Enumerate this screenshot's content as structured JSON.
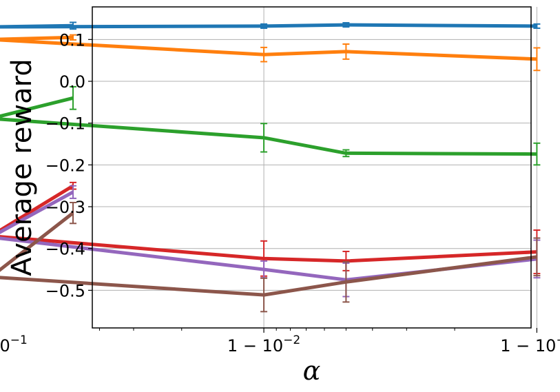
{
  "chart_data": {
    "type": "line",
    "title": "",
    "xlabel": "α",
    "ylabel": "Average reward",
    "x": [
      0.95,
      0.9,
      0.99,
      0.995,
      0.999
    ],
    "x_scale": "log(1 - x)",
    "xticks": [
      {
        "value": 0.9,
        "base": "1 − 10",
        "exp": "−1"
      },
      {
        "value": 0.99,
        "base": "1 − 10",
        "exp": "−2"
      },
      {
        "value": 0.999,
        "base": "1 − 10",
        "exp": "−3"
      }
    ],
    "ylim": [
      -0.59,
      0.178
    ],
    "yticks": [
      {
        "value": 0.1,
        "label": "0.1"
      },
      {
        "value": 0.0,
        "label": "0.0"
      },
      {
        "value": -0.1,
        "label": "−0.1"
      },
      {
        "value": -0.2,
        "label": "−0.2"
      },
      {
        "value": -0.3,
        "label": "−0.3"
      },
      {
        "value": -0.4,
        "label": "−0.4"
      },
      {
        "value": -0.5,
        "label": "−0.5"
      }
    ],
    "grid": true,
    "legend": "none",
    "series": [
      {
        "name": "blue",
        "color": "#1f77b4",
        "x": [
          0.95,
          0.9,
          0.99,
          0.995,
          0.999
        ],
        "values": [
          0.133,
          0.13,
          0.132,
          0.135,
          0.132
        ],
        "errors": [
          0.008,
          0.004,
          0.005,
          0.005,
          0.005
        ]
      },
      {
        "name": "orange",
        "color": "#ff7f0e",
        "x": [
          0.95,
          0.9,
          0.99,
          0.995,
          0.999
        ],
        "values": [
          0.105,
          0.1,
          0.064,
          0.071,
          0.053
        ],
        "errors": [
          0.006,
          0.012,
          0.017,
          0.018,
          0.027
        ]
      },
      {
        "name": "green",
        "color": "#2ca02c",
        "x": [
          0.95,
          0.9,
          0.99,
          0.995,
          0.999
        ],
        "values": [
          -0.04,
          -0.089,
          -0.135,
          -0.172,
          -0.174
        ],
        "errors": [
          0.027,
          0.013,
          0.034,
          0.008,
          0.026
        ]
      },
      {
        "name": "red",
        "color": "#d62728",
        "x": [
          0.95,
          0.9,
          0.99,
          0.995,
          0.999
        ],
        "values": [
          -0.25,
          -0.37,
          -0.424,
          -0.43,
          -0.408
        ],
        "errors": [
          0.008,
          0.017,
          0.042,
          0.023,
          0.052
        ]
      },
      {
        "name": "purple",
        "color": "#9467bd",
        "x": [
          0.95,
          0.9,
          0.99,
          0.995,
          0.999
        ],
        "values": [
          -0.265,
          -0.373,
          -0.45,
          -0.475,
          -0.425
        ],
        "errors": [
          0.015,
          0.025,
          0.02,
          0.04,
          0.045
        ]
      },
      {
        "name": "brown",
        "color": "#8c564b",
        "x": [
          0.95,
          0.9,
          0.99,
          0.995,
          0.999
        ],
        "values": [
          -0.315,
          -0.468,
          -0.511,
          -0.48,
          -0.42
        ],
        "errors": [
          0.025,
          0.05,
          0.04,
          0.048,
          0.045
        ]
      }
    ]
  }
}
